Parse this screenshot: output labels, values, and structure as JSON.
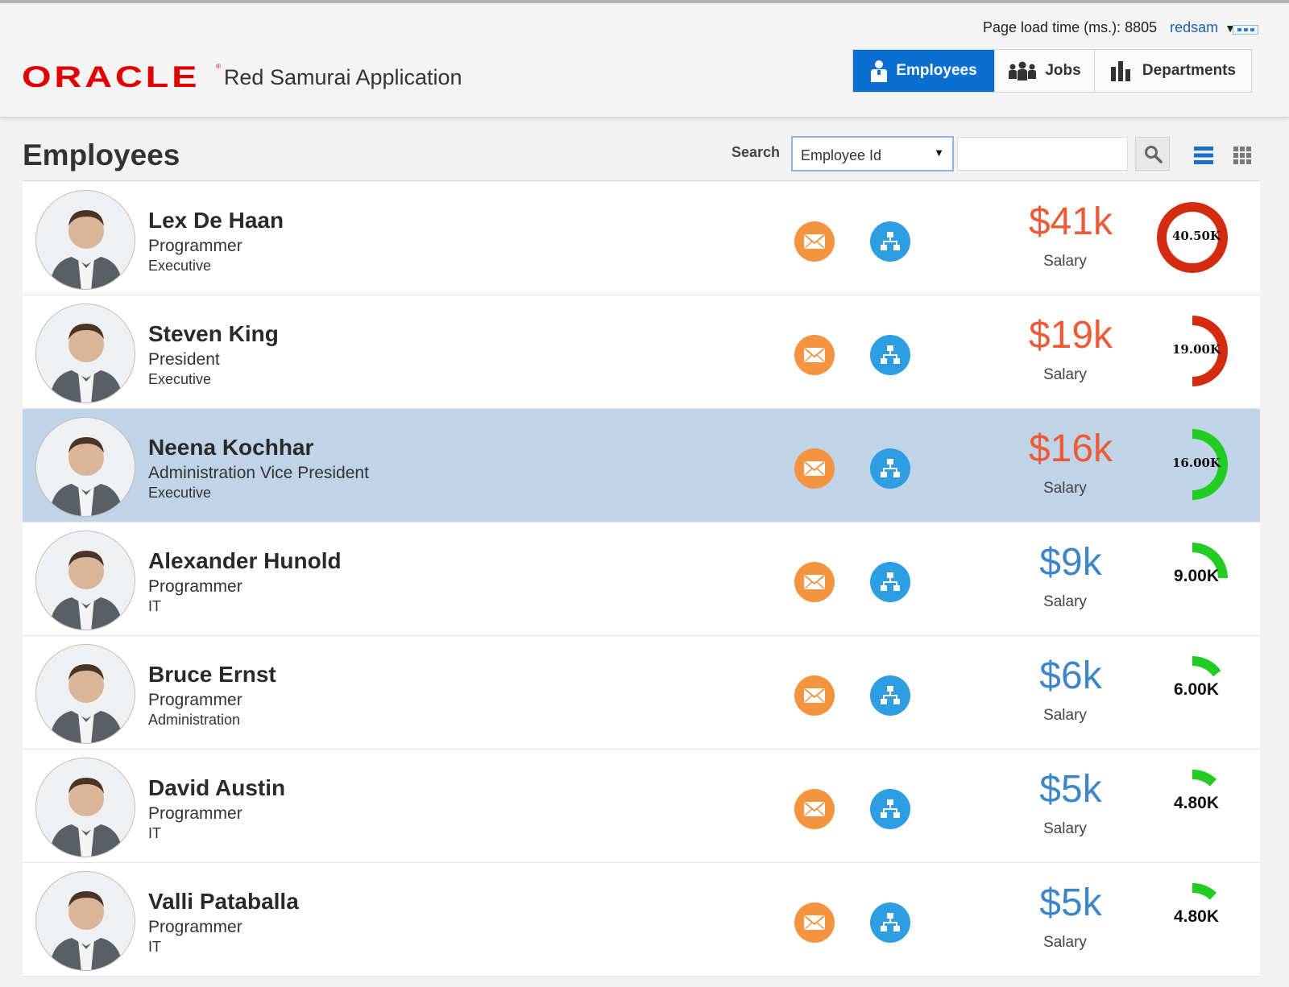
{
  "header": {
    "logo_text": "ORACLE",
    "logo_mark": "®",
    "app_title": "Red Samurai Application",
    "page_load_label": "Page load time (ms.): 8805",
    "user_name": "redsam",
    "menu_icon": "menu-dots-icon"
  },
  "nav": {
    "tabs": [
      {
        "label": "Employees",
        "icon": "person-icon",
        "active": true
      },
      {
        "label": "Jobs",
        "icon": "group-icon",
        "active": false
      },
      {
        "label": "Departments",
        "icon": "bar-chart-icon",
        "active": false
      }
    ]
  },
  "page": {
    "title": "Employees",
    "search_label": "Search",
    "search_field": "Employee Id",
    "search_value": ""
  },
  "colors": {
    "accent": "#0a6fd1",
    "salary_high": "#ee5a36",
    "salary_low": "#3f86c8",
    "gauge_red": "#d42a10",
    "gauge_green": "#22cc22",
    "mail": "#f49340",
    "org": "#2f9de1",
    "selected_row": "#bfd4e6"
  },
  "employees": [
    {
      "name": "Lex De Haan",
      "job": "Programmer",
      "department": "Executive",
      "salary": "$41k",
      "salary_label": "Salary",
      "gauge_label": "40.50K",
      "gauge_fraction": 1.0,
      "gauge_color": "#d42a10",
      "salary_color": "#ee5a36",
      "selected": false
    },
    {
      "name": "Steven King",
      "job": "President",
      "department": "Executive",
      "salary": "$19k",
      "salary_label": "Salary",
      "gauge_label": "19.00K",
      "gauge_fraction": 0.5,
      "gauge_color": "#d42a10",
      "salary_color": "#ee5a36",
      "selected": false
    },
    {
      "name": "Neena Kochhar",
      "job": "Administration Vice President",
      "department": "Executive",
      "salary": "$16k",
      "salary_label": "Salary",
      "gauge_label": "16.00K",
      "gauge_fraction": 0.5,
      "gauge_color": "#22cc22",
      "salary_color": "#ee5a36",
      "selected": true
    },
    {
      "name": "Alexander Hunold",
      "job": "Programmer",
      "department": "IT",
      "salary": "$9k",
      "salary_label": "Salary",
      "gauge_label": "9.00K",
      "gauge_fraction": 0.25,
      "gauge_color": "#22cc22",
      "salary_color": "#3f86c8",
      "selected": false
    },
    {
      "name": "Bruce Ernst",
      "job": "Programmer",
      "department": "Administration",
      "salary": "$6k",
      "salary_label": "Salary",
      "gauge_label": "6.00K",
      "gauge_fraction": 0.15,
      "gauge_color": "#22cc22",
      "salary_color": "#3f86c8",
      "selected": false
    },
    {
      "name": "David Austin",
      "job": "Programmer",
      "department": "IT",
      "salary": "$5k",
      "salary_label": "Salary",
      "gauge_label": "4.80K",
      "gauge_fraction": 0.12,
      "gauge_color": "#22cc22",
      "salary_color": "#3f86c8",
      "selected": false
    },
    {
      "name": "Valli Pataballa",
      "job": "Programmer",
      "department": "IT",
      "salary": "$5k",
      "salary_label": "Salary",
      "gauge_label": "4.80K",
      "gauge_fraction": 0.12,
      "gauge_color": "#22cc22",
      "salary_color": "#3f86c8",
      "selected": false
    }
  ]
}
